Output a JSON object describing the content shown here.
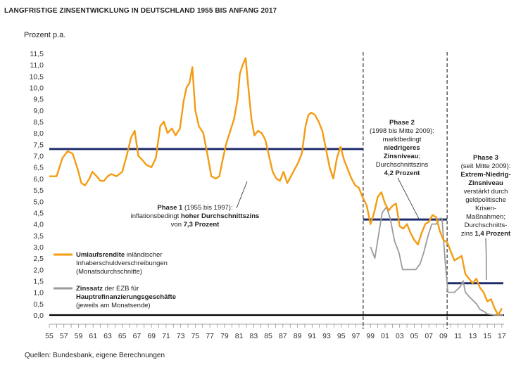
{
  "header": {
    "title": "LANGFRISTIGE ZINSENTWICKLUNG IN DEUTSCHLAND 1955 BIS ANFANG 2017",
    "ylabel": "Prozent p.a.",
    "source": "Quellen: Bundesbank, eigene Berechnungen"
  },
  "colors": {
    "umlauf": "#f39c12",
    "zins": "#9b9b9b",
    "avg": "#1f2d6b",
    "zero": "#000000"
  },
  "chart_data": {
    "type": "line",
    "xlim": [
      1955,
      2017.3
    ],
    "ylim": [
      0,
      11.5
    ],
    "x_ticks": [
      "55",
      "57",
      "59",
      "61",
      "63",
      "65",
      "67",
      "69",
      "71",
      "73",
      "75",
      "77",
      "79",
      "81",
      "83",
      "85",
      "87",
      "89",
      "91",
      "93",
      "95",
      "97",
      "99",
      "01",
      "03",
      "05",
      "07",
      "09",
      "11",
      "13",
      "15",
      "17"
    ],
    "y_ticks": [
      "0,0",
      "0,5",
      "1,0",
      "1,5",
      "2,0",
      "2,5",
      "3,0",
      "3,5",
      "4,0",
      "4,5",
      "5,0",
      "5,5",
      "6,0",
      "6,5",
      "7,0",
      "7,5",
      "8,0",
      "8,5",
      "9,0",
      "9,5",
      "10,0",
      "10,5",
      "11,0",
      "11,5"
    ],
    "series": [
      {
        "name": "Umlaufsrendite",
        "x": [
          1955.0,
          1956.0,
          1956.8,
          1957.5,
          1958.2,
          1958.9,
          1959.4,
          1959.9,
          1960.5,
          1960.9,
          1961.5,
          1962.0,
          1962.5,
          1963.0,
          1963.5,
          1964.2,
          1965.0,
          1965.6,
          1966.2,
          1966.7,
          1967.2,
          1967.8,
          1968.3,
          1969.0,
          1969.6,
          1970.2,
          1970.7,
          1971.2,
          1971.8,
          1972.3,
          1972.9,
          1973.4,
          1973.8,
          1974.2,
          1974.6,
          1975.0,
          1975.5,
          1976.1,
          1976.7,
          1977.2,
          1977.8,
          1978.3,
          1978.8,
          1979.3,
          1979.8,
          1980.3,
          1980.8,
          1981.1,
          1981.5,
          1981.9,
          1982.3,
          1982.7,
          1983.1,
          1983.6,
          1984.1,
          1984.6,
          1985.1,
          1985.6,
          1986.1,
          1986.6,
          1987.1,
          1987.6,
          1988.1,
          1988.6,
          1989.1,
          1989.6,
          1990.1,
          1990.5,
          1990.9,
          1991.4,
          1991.9,
          1992.4,
          1992.9,
          1993.4,
          1993.9,
          1994.4,
          1994.9,
          1995.4,
          1995.9,
          1996.4,
          1996.9,
          1997.4,
          1997.9,
          1998.5,
          1999.0,
          1999.5,
          2000.0,
          2000.5,
          2001.0,
          2001.5,
          2002.0,
          2002.5,
          2003.0,
          2003.5,
          2004.0,
          2004.5,
          2005.0,
          2005.5,
          2006.0,
          2006.5,
          2007.0,
          2007.5,
          2008.0,
          2008.5,
          2009.0,
          2009.5,
          2010.0,
          2010.5,
          2011.0,
          2011.5,
          2012.0,
          2012.5,
          2013.0,
          2013.5,
          2014.0,
          2014.5,
          2015.0,
          2015.5,
          2016.0,
          2016.5,
          2017.0
        ],
        "y": [
          6.1,
          6.1,
          6.9,
          7.2,
          7.1,
          6.4,
          5.8,
          5.7,
          6.0,
          6.3,
          6.1,
          5.9,
          5.9,
          6.1,
          6.2,
          6.1,
          6.3,
          7.0,
          7.8,
          8.1,
          7.0,
          6.8,
          6.6,
          6.5,
          6.9,
          8.3,
          8.5,
          8.0,
          8.2,
          7.9,
          8.2,
          9.4,
          10.0,
          10.2,
          10.9,
          9.0,
          8.3,
          8.0,
          7.0,
          6.1,
          6.0,
          6.1,
          6.9,
          7.6,
          8.1,
          8.6,
          9.5,
          10.6,
          11.0,
          11.3,
          9.9,
          8.6,
          7.9,
          8.1,
          8.0,
          7.7,
          7.0,
          6.3,
          6.0,
          5.9,
          6.3,
          5.8,
          6.1,
          6.4,
          6.7,
          7.1,
          8.3,
          8.8,
          8.9,
          8.8,
          8.5,
          8.1,
          7.3,
          6.5,
          6.0,
          6.9,
          7.4,
          6.8,
          6.4,
          6.0,
          5.7,
          5.6,
          5.2,
          4.8,
          4.0,
          4.5,
          5.2,
          5.4,
          4.9,
          4.6,
          4.8,
          4.9,
          3.9,
          3.8,
          4.0,
          3.6,
          3.3,
          3.1,
          3.6,
          4.0,
          4.1,
          4.4,
          4.3,
          3.7,
          3.3,
          3.2,
          2.8,
          2.4,
          2.5,
          2.6,
          1.8,
          1.6,
          1.4,
          1.6,
          1.2,
          1.0,
          0.6,
          0.7,
          0.3,
          0.0,
          0.3
        ]
      },
      {
        "name": "Zinssatz",
        "x": [
          1999.0,
          1999.6,
          2000.1,
          2000.6,
          2001.2,
          2001.7,
          2002.3,
          2002.9,
          2003.4,
          2004.0,
          2004.6,
          2005.2,
          2005.8,
          2006.3,
          2006.9,
          2007.4,
          2008.0,
          2008.5,
          2008.8,
          2009.2,
          2009.6,
          2010.5,
          2011.3,
          2011.7,
          2012.0,
          2012.7,
          2013.5,
          2014.0,
          2014.6,
          2015.0,
          2016.0,
          2016.5,
          2017.2
        ],
        "y": [
          3.0,
          2.5,
          3.5,
          4.5,
          4.75,
          4.25,
          3.25,
          2.75,
          2.0,
          2.0,
          2.0,
          2.0,
          2.25,
          2.75,
          3.5,
          4.0,
          4.0,
          4.25,
          4.25,
          2.5,
          1.0,
          1.0,
          1.25,
          1.5,
          1.0,
          0.75,
          0.5,
          0.25,
          0.15,
          0.05,
          0.0,
          0.0,
          0.0
        ]
      },
      {
        "name": "Durchschnittszins",
        "segments": [
          {
            "x": [
              1955,
              1998
            ],
            "y": 7.3
          },
          {
            "x": [
              1998,
              2009.5
            ],
            "y": 4.2
          },
          {
            "x": [
              2009.5,
              2017.2
            ],
            "y": 1.4
          }
        ]
      }
    ],
    "phase_lines": [
      1998,
      2009.5
    ]
  },
  "legend": {
    "umlauf_bold": "Umlaufsrendite",
    "umlauf_rest1": " inländischer",
    "umlauf_rest2": "Inhaberschuldverschreibungen",
    "umlauf_rest3": "(Monatsdurchschnitte)",
    "zins_bold": "Zinssatz",
    "zins_rest1": " der EZB für",
    "zins_bold2": "Hauptrefinanzierungsgeschäfte",
    "zins_rest3": "(jeweils am Monatsende)"
  },
  "annotations": {
    "phase1": {
      "l1_bold": "Phase 1",
      "l1_rest": " (1955 bis 1997):",
      "l2_norm": "inflationsbedingt ",
      "l2_bold": "hoher Durchschnittszins",
      "l3_norm": "von ",
      "l3_bold": "7,3 Prozent"
    },
    "phase2": {
      "l1": "Phase 2",
      "l2": "(1998 bis Mitte 2009):",
      "l3": "marktbedingt",
      "l4": "niedrigeres",
      "l5": "Zinsniveau",
      "l5b": ";",
      "l6": "Durchschnittszins",
      "l7": "4,2 Prozent"
    },
    "phase3": {
      "l1": "Phase 3",
      "l2": "(seit Mitte 2009):",
      "l3": "Extrem-Niedrig-",
      "l4": "Zinsniveau",
      "l5": "verstärkt durch",
      "l6": "geldpolitische",
      "l7": "Krisen-",
      "l8": "Maßnahmen;",
      "l9": "Durchschnitts-",
      "l10_norm": "zins ",
      "l10_bold": "1,4 Prozent"
    }
  }
}
